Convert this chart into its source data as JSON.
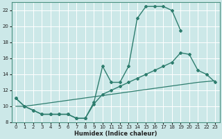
{
  "xlabel": "Humidex (Indice chaleur)",
  "background_color": "#cce8e8",
  "grid_color": "#ffffff",
  "line_color": "#2e7d6e",
  "xlim": [
    -0.5,
    23.5
  ],
  "ylim": [
    8,
    23
  ],
  "xticks": [
    0,
    1,
    2,
    3,
    4,
    5,
    6,
    7,
    8,
    9,
    10,
    11,
    12,
    13,
    14,
    15,
    16,
    17,
    18,
    19,
    20,
    21,
    22,
    23
  ],
  "yticks": [
    8,
    10,
    12,
    14,
    16,
    18,
    20,
    22
  ],
  "s1_x": [
    0,
    1,
    2,
    3,
    4,
    5,
    6,
    7,
    8,
    9,
    10,
    11,
    12,
    13,
    14,
    15,
    16,
    17,
    18,
    19
  ],
  "s1_y": [
    11,
    10,
    9.5,
    9,
    9,
    9,
    9,
    8.5,
    8.5,
    10.5,
    15,
    13,
    13,
    15,
    21,
    22.5,
    22.5,
    22.5,
    22,
    19.5
  ],
  "s2_x": [
    0,
    1,
    2,
    3,
    4,
    5,
    6,
    7,
    8,
    9,
    10,
    11,
    12,
    13,
    14,
    15,
    16,
    17,
    18,
    19,
    20,
    21,
    22,
    23
  ],
  "s2_y": [
    11,
    10,
    9.5,
    9,
    9,
    9,
    9,
    8.5,
    8.5,
    10.3,
    11.5,
    12,
    12.5,
    13,
    13.5,
    14,
    14.5,
    15,
    15.5,
    16.7,
    16.5,
    14.5,
    14,
    13
  ],
  "s3_x": [
    0,
    1,
    2,
    3,
    4,
    5,
    6,
    7,
    8,
    9,
    10,
    11,
    12,
    13,
    14,
    15,
    16,
    17,
    18,
    19,
    20,
    21,
    22,
    23
  ],
  "s3_y": [
    10,
    10,
    10.15,
    10.3,
    10.45,
    10.6,
    10.75,
    10.9,
    11.05,
    11.2,
    11.35,
    11.5,
    11.65,
    11.8,
    11.95,
    12.1,
    12.25,
    12.4,
    12.55,
    12.7,
    12.85,
    13.0,
    13.1,
    13.2
  ]
}
